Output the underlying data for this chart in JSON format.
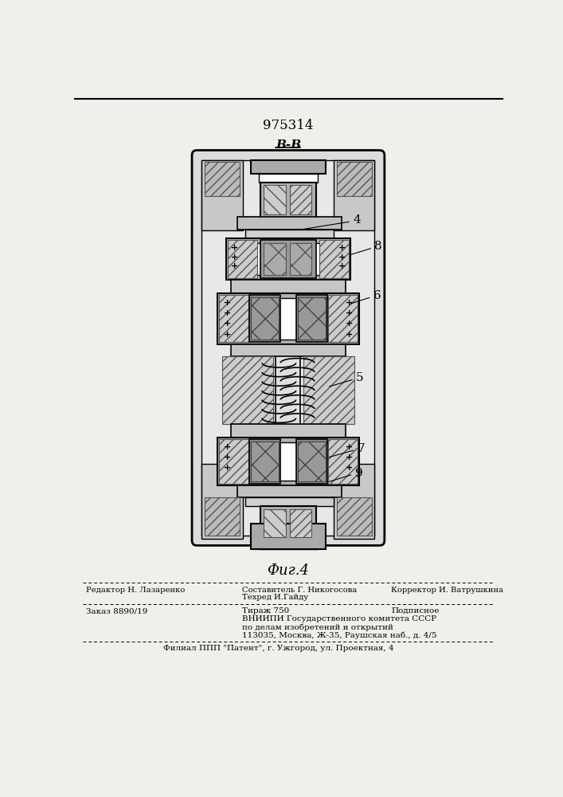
{
  "title_number": "975314",
  "section_label": "В-В",
  "fig_label": "Фиг.4",
  "label_4": "4",
  "label_5": "5",
  "label_6": "6",
  "label_7": "7",
  "label_8": "8",
  "label_9": "9",
  "footer_line1_left": "Редактор Н. Лазаренко",
  "footer_line1_center1": "Составитель Г. Никогосова",
  "footer_line1_center2": "Техред И.Гайду",
  "footer_line1_right": "Корректор И. Ватрушкина",
  "footer_line2_left": "Заказ 8890/19",
  "footer_line2_center1": "Тираж 750",
  "footer_line2_center2": "Подписное",
  "footer_line3": "ВНИИПИ Государственного комитета СССР",
  "footer_line4": "по делам изобретений и открытий",
  "footer_line5": "113035, Москва, Ж-35, Раушская наб., д. 4/5",
  "footer_line6": "Филиал ППП \"Патент\", г. Ужгород, ул. Проектная, 4",
  "bg_color": "#f0f0eb",
  "drawing_bg": "#ffffff"
}
